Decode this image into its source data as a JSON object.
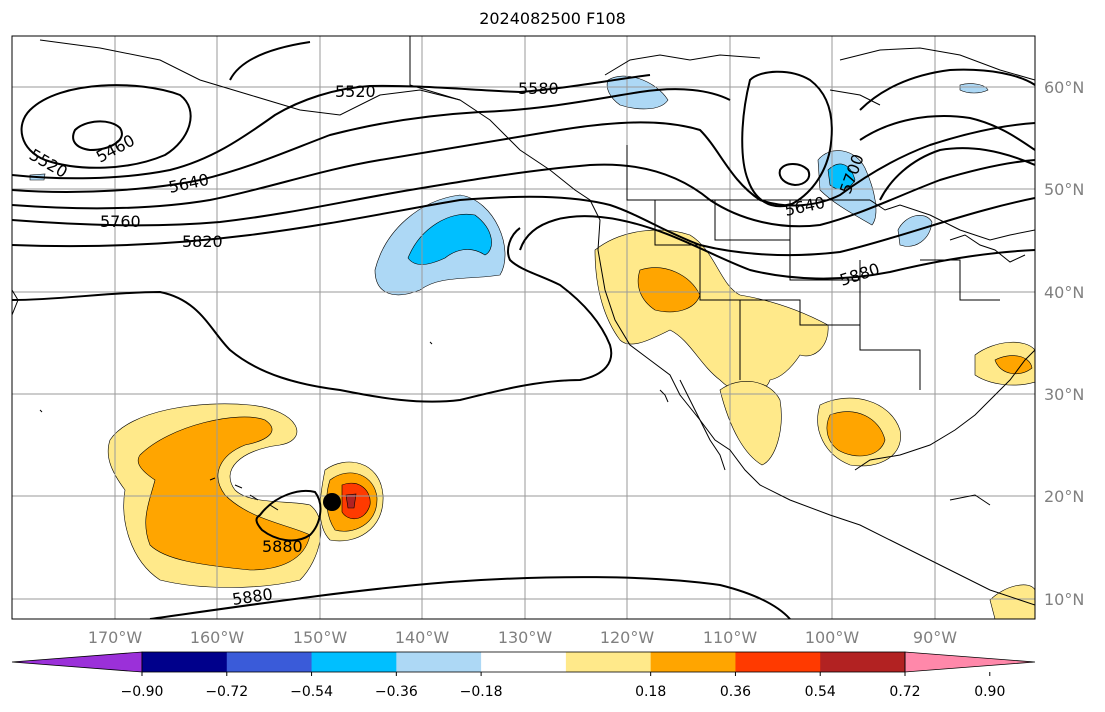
{
  "title": "2024082500 F108",
  "map": {
    "lat_labels": [
      "60°N",
      "50°N",
      "40°N",
      "30°N",
      "20°N",
      "10°N"
    ],
    "lon_labels": [
      "170°W",
      "160°W",
      "150°W",
      "140°W",
      "130°W",
      "120°W",
      "110°W",
      "100°W",
      "90°W"
    ],
    "height_contour_labels": [
      "5460",
      "5520",
      "5520",
      "5580",
      "5640",
      "5640",
      "5700",
      "5760",
      "5820",
      "5880",
      "5880",
      "5880"
    ],
    "storm_marker": {
      "lat": 19.5,
      "lon": -148.5
    }
  },
  "colorbar": {
    "ticks": [
      "−0.90",
      "−0.72",
      "−0.54",
      "−0.36",
      "−0.18",
      "0.18",
      "0.36",
      "0.54",
      "0.72",
      "0.90"
    ],
    "colors": [
      "#9b30d9",
      "#00008b",
      "#3a5bd9",
      "#00bfff",
      "#add8f5",
      "#ffffff",
      "#ffe98a",
      "#ffa500",
      "#ff3a00",
      "#b22222",
      "#ff88aa"
    ]
  }
}
